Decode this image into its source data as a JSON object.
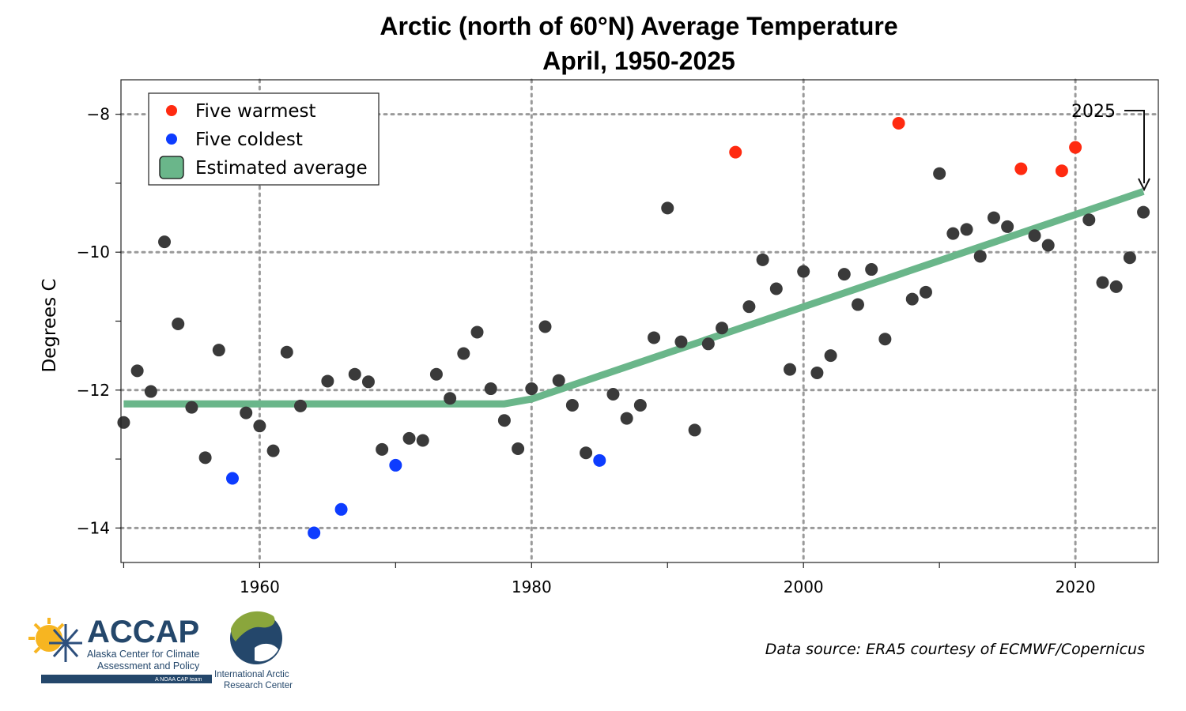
{
  "chart_data": {
    "type": "scatter",
    "title": "Arctic (north of 60°N) Average Temperature",
    "subtitle": "April, 1950-2025",
    "ylabel": "Degrees C",
    "xlabel": "",
    "xlim": [
      1949.8,
      2026.1
    ],
    "ylim": [
      -14.5,
      -7.5
    ],
    "x_ticks": [
      1960,
      1980,
      2000,
      2020
    ],
    "y_ticks": [
      -8,
      -10,
      -12,
      -14
    ],
    "grid": true,
    "legend_position": "top-left",
    "legend": {
      "warmest": "Five warmest",
      "coldest": "Five coldest",
      "average": "Estimated average"
    },
    "colors": {
      "normal": "#3a3a3a",
      "warmest": "#ff2a10",
      "coldest": "#0d3cff",
      "average": "#6ab68a"
    },
    "points": [
      {
        "x": 1950,
        "y": -12.47,
        "cat": "normal"
      },
      {
        "x": 1951,
        "y": -11.72,
        "cat": "normal"
      },
      {
        "x": 1952,
        "y": -12.02,
        "cat": "normal"
      },
      {
        "x": 1953,
        "y": -9.85,
        "cat": "normal"
      },
      {
        "x": 1954,
        "y": -11.04,
        "cat": "normal"
      },
      {
        "x": 1955,
        "y": -12.25,
        "cat": "normal"
      },
      {
        "x": 1956,
        "y": -12.98,
        "cat": "normal"
      },
      {
        "x": 1957,
        "y": -11.42,
        "cat": "normal"
      },
      {
        "x": 1958,
        "y": -13.28,
        "cat": "coldest"
      },
      {
        "x": 1959,
        "y": -12.33,
        "cat": "normal"
      },
      {
        "x": 1960,
        "y": -12.52,
        "cat": "normal"
      },
      {
        "x": 1961,
        "y": -12.88,
        "cat": "normal"
      },
      {
        "x": 1962,
        "y": -11.45,
        "cat": "normal"
      },
      {
        "x": 1963,
        "y": -12.23,
        "cat": "normal"
      },
      {
        "x": 1964,
        "y": -14.07,
        "cat": "coldest"
      },
      {
        "x": 1965,
        "y": -11.87,
        "cat": "normal"
      },
      {
        "x": 1966,
        "y": -13.73,
        "cat": "coldest"
      },
      {
        "x": 1967,
        "y": -11.77,
        "cat": "normal"
      },
      {
        "x": 1968,
        "y": -11.88,
        "cat": "normal"
      },
      {
        "x": 1969,
        "y": -12.86,
        "cat": "normal"
      },
      {
        "x": 1970,
        "y": -13.09,
        "cat": "coldest"
      },
      {
        "x": 1971,
        "y": -12.7,
        "cat": "normal"
      },
      {
        "x": 1972,
        "y": -12.73,
        "cat": "normal"
      },
      {
        "x": 1973,
        "y": -11.77,
        "cat": "normal"
      },
      {
        "x": 1974,
        "y": -12.12,
        "cat": "normal"
      },
      {
        "x": 1975,
        "y": -11.47,
        "cat": "normal"
      },
      {
        "x": 1976,
        "y": -11.16,
        "cat": "normal"
      },
      {
        "x": 1977,
        "y": -11.98,
        "cat": "normal"
      },
      {
        "x": 1978,
        "y": -12.44,
        "cat": "normal"
      },
      {
        "x": 1979,
        "y": -12.85,
        "cat": "normal"
      },
      {
        "x": 1980,
        "y": -11.98,
        "cat": "normal"
      },
      {
        "x": 1981,
        "y": -11.08,
        "cat": "normal"
      },
      {
        "x": 1982,
        "y": -11.86,
        "cat": "normal"
      },
      {
        "x": 1983,
        "y": -12.22,
        "cat": "normal"
      },
      {
        "x": 1984,
        "y": -12.91,
        "cat": "normal"
      },
      {
        "x": 1985,
        "y": -13.02,
        "cat": "coldest"
      },
      {
        "x": 1986,
        "y": -12.06,
        "cat": "normal"
      },
      {
        "x": 1987,
        "y": -12.41,
        "cat": "normal"
      },
      {
        "x": 1988,
        "y": -12.22,
        "cat": "normal"
      },
      {
        "x": 1989,
        "y": -11.24,
        "cat": "normal"
      },
      {
        "x": 1990,
        "y": -9.36,
        "cat": "normal"
      },
      {
        "x": 1991,
        "y": -11.3,
        "cat": "normal"
      },
      {
        "x": 1992,
        "y": -12.58,
        "cat": "normal"
      },
      {
        "x": 1993,
        "y": -11.33,
        "cat": "normal"
      },
      {
        "x": 1994,
        "y": -11.1,
        "cat": "normal"
      },
      {
        "x": 1995,
        "y": -8.55,
        "cat": "warmest"
      },
      {
        "x": 1996,
        "y": -10.79,
        "cat": "normal"
      },
      {
        "x": 1997,
        "y": -10.11,
        "cat": "normal"
      },
      {
        "x": 1998,
        "y": -10.53,
        "cat": "normal"
      },
      {
        "x": 1999,
        "y": -11.7,
        "cat": "normal"
      },
      {
        "x": 2000,
        "y": -10.28,
        "cat": "normal"
      },
      {
        "x": 2001,
        "y": -11.75,
        "cat": "normal"
      },
      {
        "x": 2002,
        "y": -11.5,
        "cat": "normal"
      },
      {
        "x": 2003,
        "y": -10.32,
        "cat": "normal"
      },
      {
        "x": 2004,
        "y": -10.76,
        "cat": "normal"
      },
      {
        "x": 2005,
        "y": -10.25,
        "cat": "normal"
      },
      {
        "x": 2006,
        "y": -11.26,
        "cat": "normal"
      },
      {
        "x": 2007,
        "y": -8.13,
        "cat": "warmest"
      },
      {
        "x": 2008,
        "y": -10.68,
        "cat": "normal"
      },
      {
        "x": 2009,
        "y": -10.58,
        "cat": "normal"
      },
      {
        "x": 2010,
        "y": -8.86,
        "cat": "normal"
      },
      {
        "x": 2011,
        "y": -9.73,
        "cat": "normal"
      },
      {
        "x": 2012,
        "y": -9.67,
        "cat": "normal"
      },
      {
        "x": 2013,
        "y": -10.06,
        "cat": "normal"
      },
      {
        "x": 2014,
        "y": -9.5,
        "cat": "normal"
      },
      {
        "x": 2015,
        "y": -9.63,
        "cat": "normal"
      },
      {
        "x": 2016,
        "y": -8.79,
        "cat": "warmest"
      },
      {
        "x": 2017,
        "y": -9.76,
        "cat": "normal"
      },
      {
        "x": 2018,
        "y": -9.9,
        "cat": "normal"
      },
      {
        "x": 2019,
        "y": -8.82,
        "cat": "warmest"
      },
      {
        "x": 2020,
        "y": -8.48,
        "cat": "warmest"
      },
      {
        "x": 2021,
        "y": -9.53,
        "cat": "normal"
      },
      {
        "x": 2022,
        "y": -10.44,
        "cat": "normal"
      },
      {
        "x": 2023,
        "y": -10.5,
        "cat": "normal"
      },
      {
        "x": 2024,
        "y": -10.08,
        "cat": "normal"
      },
      {
        "x": 2025,
        "y": -9.42,
        "cat": "normal"
      }
    ],
    "average_line": [
      {
        "x": 1950,
        "y": -12.2
      },
      {
        "x": 1978,
        "y": -12.2
      },
      {
        "x": 1980,
        "y": -12.13
      },
      {
        "x": 2025,
        "y": -9.12
      }
    ],
    "annotation": {
      "label": "2025",
      "x": 2025,
      "y": -9.12
    }
  },
  "source_text": "Data source: ERA5 courtesy of ECMWF/Copernicus",
  "logos": {
    "accap_name": "ACCAP",
    "accap_line1": "Alaska Center for Climate",
    "accap_line2": "Assessment and Policy",
    "accap_tag": "A NOAA CAP team",
    "iarc_line1": "International Arctic",
    "iarc_line2": "Research Center"
  }
}
